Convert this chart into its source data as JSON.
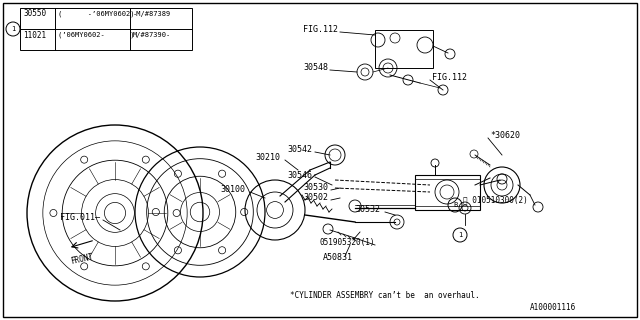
{
  "bg_color": "#ffffff",
  "line_color": "#000000",
  "text_color": "#000000",
  "fig_width": 6.4,
  "fig_height": 3.2,
  "dpi": 100,
  "table_rows": [
    [
      "30550",
      "(      -’06MY0602)",
      "-M/#87389"
    ],
    [
      "11021",
      "(’06MY0602-      )",
      "M/#87390-"
    ]
  ],
  "note": "*CYLINDER ASSEMBRY can’t be  an overhaul.",
  "diagram_id": "A100001116"
}
